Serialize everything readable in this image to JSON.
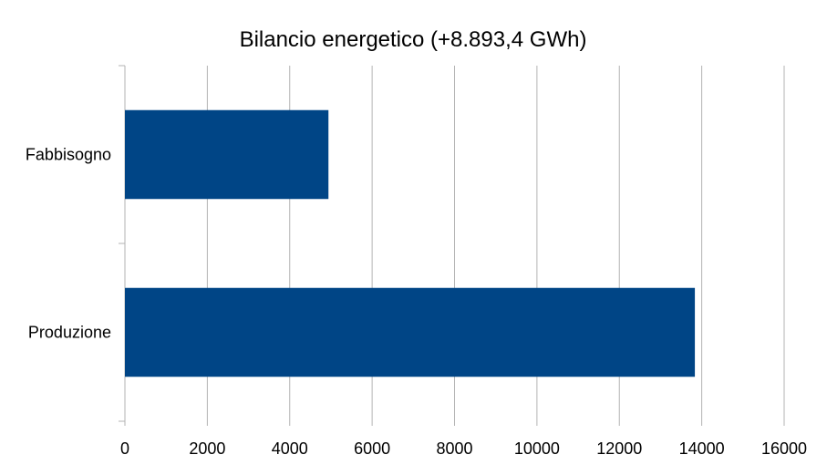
{
  "chart_data": {
    "type": "bar",
    "orientation": "horizontal",
    "title": "Bilancio energetico (+8.893,4 GWh)",
    "categories": [
      "Fabbisogno",
      "Produzione"
    ],
    "series": [
      {
        "values": [
          4940,
          13833
        ]
      }
    ],
    "xlim": [
      0,
      16000
    ],
    "x_ticks": [
      "0",
      "2000",
      "4000",
      "6000",
      "8000",
      "10000",
      "12000",
      "14000",
      "16000"
    ],
    "xlabel": "",
    "ylabel": "",
    "grid": true,
    "legend": "none",
    "colors": {
      "bar": "#004586",
      "grid": "#b3b3b3",
      "axis": "#b3b3b3"
    }
  }
}
